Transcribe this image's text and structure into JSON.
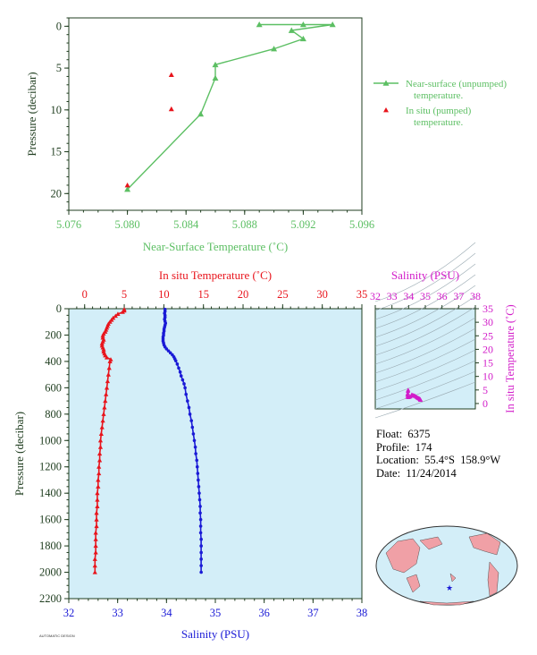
{
  "colors": {
    "green": "#5cbf63",
    "red": "#e8141c",
    "blue": "#1a1ad6",
    "magenta": "#d21cc9",
    "axis": "#1f3d1f",
    "panel_bg": "#d3eef8",
    "land": "#f0a0a6"
  },
  "info": {
    "float": "Float:  6375",
    "profile": "Profile:  174",
    "location": "Location:  55.4°S  158.9°W",
    "date": "Date:  11/24/2014"
  },
  "footer_text": "AUTOMATIC DESIGN",
  "chart_data": [
    {
      "id": "near-surface",
      "type": "scatter",
      "xlabel": "Near-Surface Temperature (˚C)",
      "ylabel": "Pressure (decibar)",
      "xlim": [
        5.076,
        5.096
      ],
      "ylim": [
        22,
        -1
      ],
      "x_ticks": [
        "5.076",
        "5.080",
        "5.084",
        "5.088",
        "5.092",
        "5.096"
      ],
      "y_ticks": [
        "0",
        "5",
        "10",
        "15",
        "20"
      ],
      "legend_position": "right",
      "series": [
        {
          "name": "Near-surface (unpumped) temperature.",
          "style": "line-triangle",
          "points": [
            [
              5.089,
              -0.2
            ],
            [
              5.092,
              -0.2
            ],
            [
              5.094,
              -0.2
            ],
            [
              5.0912,
              0.5
            ],
            [
              5.092,
              1.5
            ],
            [
              5.09,
              2.7
            ],
            [
              5.086,
              4.6
            ],
            [
              5.086,
              6.2
            ],
            [
              5.085,
              10.5
            ],
            [
              5.08,
              19.5
            ]
          ]
        },
        {
          "name": "In situ (pumped) temperature.",
          "style": "triangle",
          "points": [
            [
              5.083,
              5.8
            ],
            [
              5.083,
              9.9
            ],
            [
              5.08,
              19.0
            ]
          ]
        }
      ]
    },
    {
      "id": "profile",
      "type": "line",
      "ylabel": "Pressure (decibar)",
      "ylim": [
        2200,
        0
      ],
      "y_ticks": [
        "0",
        "200",
        "400",
        "600",
        "800",
        "1000",
        "1200",
        "1400",
        "1600",
        "1800",
        "2000",
        "2200"
      ],
      "top_axis": {
        "label": "In situ Temperature (˚C)",
        "xlim": [
          -2,
          35
        ],
        "ticks": [
          "0",
          "5",
          "10",
          "15",
          "20",
          "25",
          "30",
          "35"
        ]
      },
      "bottom_axis": {
        "label": "Salinity (PSU)",
        "xlim": [
          32,
          38
        ],
        "ticks": [
          "32",
          "33",
          "34",
          "35",
          "36",
          "37",
          "38"
        ]
      },
      "series": [
        {
          "name": "Temperature",
          "axis": "top",
          "points": [
            [
              5.0,
              5
            ],
            [
              5.0,
              15
            ],
            [
              4.8,
              25
            ],
            [
              4.2,
              40
            ],
            [
              3.9,
              55
            ],
            [
              3.6,
              70
            ],
            [
              3.4,
              85
            ],
            [
              3.2,
              100
            ],
            [
              3.0,
              115
            ],
            [
              2.9,
              130
            ],
            [
              2.8,
              145
            ],
            [
              2.7,
              160
            ],
            [
              2.6,
              175
            ],
            [
              2.4,
              190
            ],
            [
              2.3,
              205
            ],
            [
              2.3,
              220
            ],
            [
              2.4,
              235
            ],
            [
              2.3,
              250
            ],
            [
              2.2,
              265
            ],
            [
              2.2,
              280
            ],
            [
              2.3,
              295
            ],
            [
              2.4,
              310
            ],
            [
              2.4,
              325
            ],
            [
              2.5,
              340
            ],
            [
              2.6,
              355
            ],
            [
              2.8,
              370
            ],
            [
              3.3,
              385
            ],
            [
              3.2,
              400
            ],
            [
              3.1,
              450
            ],
            [
              3.0,
              500
            ],
            [
              2.9,
              550
            ],
            [
              2.8,
              600
            ],
            [
              2.7,
              650
            ],
            [
              2.6,
              700
            ],
            [
              2.5,
              750
            ],
            [
              2.4,
              800
            ],
            [
              2.3,
              850
            ],
            [
              2.2,
              900
            ],
            [
              2.1,
              950
            ],
            [
              2.0,
              1000
            ],
            [
              2.0,
              1050
            ],
            [
              1.9,
              1100
            ],
            [
              1.9,
              1150
            ],
            [
              1.8,
              1200
            ],
            [
              1.8,
              1250
            ],
            [
              1.7,
              1300
            ],
            [
              1.7,
              1350
            ],
            [
              1.6,
              1400
            ],
            [
              1.6,
              1450
            ],
            [
              1.6,
              1500
            ],
            [
              1.5,
              1550
            ],
            [
              1.5,
              1600
            ],
            [
              1.5,
              1650
            ],
            [
              1.4,
              1700
            ],
            [
              1.4,
              1750
            ],
            [
              1.4,
              1800
            ],
            [
              1.4,
              1850
            ],
            [
              1.3,
              1900
            ],
            [
              1.3,
              1950
            ],
            [
              1.3,
              2000
            ]
          ]
        },
        {
          "name": "Salinity",
          "axis": "bottom",
          "points": [
            [
              33.97,
              5
            ],
            [
              33.97,
              20
            ],
            [
              33.96,
              35
            ],
            [
              33.97,
              50
            ],
            [
              33.97,
              65
            ],
            [
              33.96,
              80
            ],
            [
              33.97,
              95
            ],
            [
              33.98,
              110
            ],
            [
              33.97,
              125
            ],
            [
              33.96,
              140
            ],
            [
              33.95,
              155
            ],
            [
              33.95,
              170
            ],
            [
              33.94,
              185
            ],
            [
              33.94,
              200
            ],
            [
              33.93,
              215
            ],
            [
              33.93,
              230
            ],
            [
              33.93,
              245
            ],
            [
              33.94,
              260
            ],
            [
              33.95,
              275
            ],
            [
              33.97,
              290
            ],
            [
              34.0,
              305
            ],
            [
              34.04,
              320
            ],
            [
              34.08,
              335
            ],
            [
              34.12,
              350
            ],
            [
              34.15,
              365
            ],
            [
              34.17,
              380
            ],
            [
              34.19,
              395
            ],
            [
              34.22,
              420
            ],
            [
              34.25,
              450
            ],
            [
              34.28,
              480
            ],
            [
              34.3,
              510
            ],
            [
              34.33,
              540
            ],
            [
              34.36,
              570
            ],
            [
              34.38,
              600
            ],
            [
              34.4,
              650
            ],
            [
              34.43,
              700
            ],
            [
              34.46,
              750
            ],
            [
              34.48,
              800
            ],
            [
              34.51,
              850
            ],
            [
              34.53,
              900
            ],
            [
              34.55,
              950
            ],
            [
              34.57,
              1000
            ],
            [
              34.59,
              1050
            ],
            [
              34.6,
              1100
            ],
            [
              34.62,
              1150
            ],
            [
              34.63,
              1200
            ],
            [
              34.64,
              1250
            ],
            [
              34.65,
              1300
            ],
            [
              34.66,
              1350
            ],
            [
              34.67,
              1400
            ],
            [
              34.68,
              1450
            ],
            [
              34.69,
              1500
            ],
            [
              34.69,
              1550
            ],
            [
              34.7,
              1600
            ],
            [
              34.7,
              1650
            ],
            [
              34.7,
              1700
            ],
            [
              34.71,
              1750
            ],
            [
              34.71,
              1800
            ],
            [
              34.71,
              1850
            ],
            [
              34.71,
              1900
            ],
            [
              34.71,
              1950
            ],
            [
              34.71,
              2000
            ]
          ]
        }
      ]
    },
    {
      "id": "ts-diagram",
      "type": "scatter",
      "title": "Salinity (PSU)",
      "ylabel": "In situ Temperature (˚C)",
      "xlim": [
        32,
        38
      ],
      "ylim": [
        -2,
        35
      ],
      "x_ticks": [
        "32",
        "33",
        "34",
        "35",
        "36",
        "37",
        "38"
      ],
      "y_ticks": [
        "0",
        "5",
        "10",
        "15",
        "20",
        "25",
        "30",
        "35"
      ],
      "series": [
        {
          "name": "T-S",
          "points": [
            [
              33.97,
              5.0
            ],
            [
              33.96,
              4.6
            ],
            [
              33.95,
              3.8
            ],
            [
              33.93,
              3.2
            ],
            [
              33.93,
              2.4
            ],
            [
              34.0,
              2.3
            ],
            [
              34.08,
              2.5
            ],
            [
              34.15,
              2.8
            ],
            [
              34.19,
              3.3
            ],
            [
              34.25,
              3.1
            ],
            [
              34.3,
              3.0
            ],
            [
              34.36,
              2.9
            ],
            [
              34.4,
              2.7
            ],
            [
              34.46,
              2.5
            ],
            [
              34.51,
              2.3
            ],
            [
              34.55,
              2.1
            ],
            [
              34.59,
              2.0
            ],
            [
              34.62,
              1.9
            ],
            [
              34.65,
              1.8
            ],
            [
              34.67,
              1.7
            ],
            [
              34.69,
              1.6
            ],
            [
              34.7,
              1.5
            ],
            [
              34.71,
              1.4
            ],
            [
              34.71,
              1.3
            ]
          ]
        }
      ]
    }
  ]
}
